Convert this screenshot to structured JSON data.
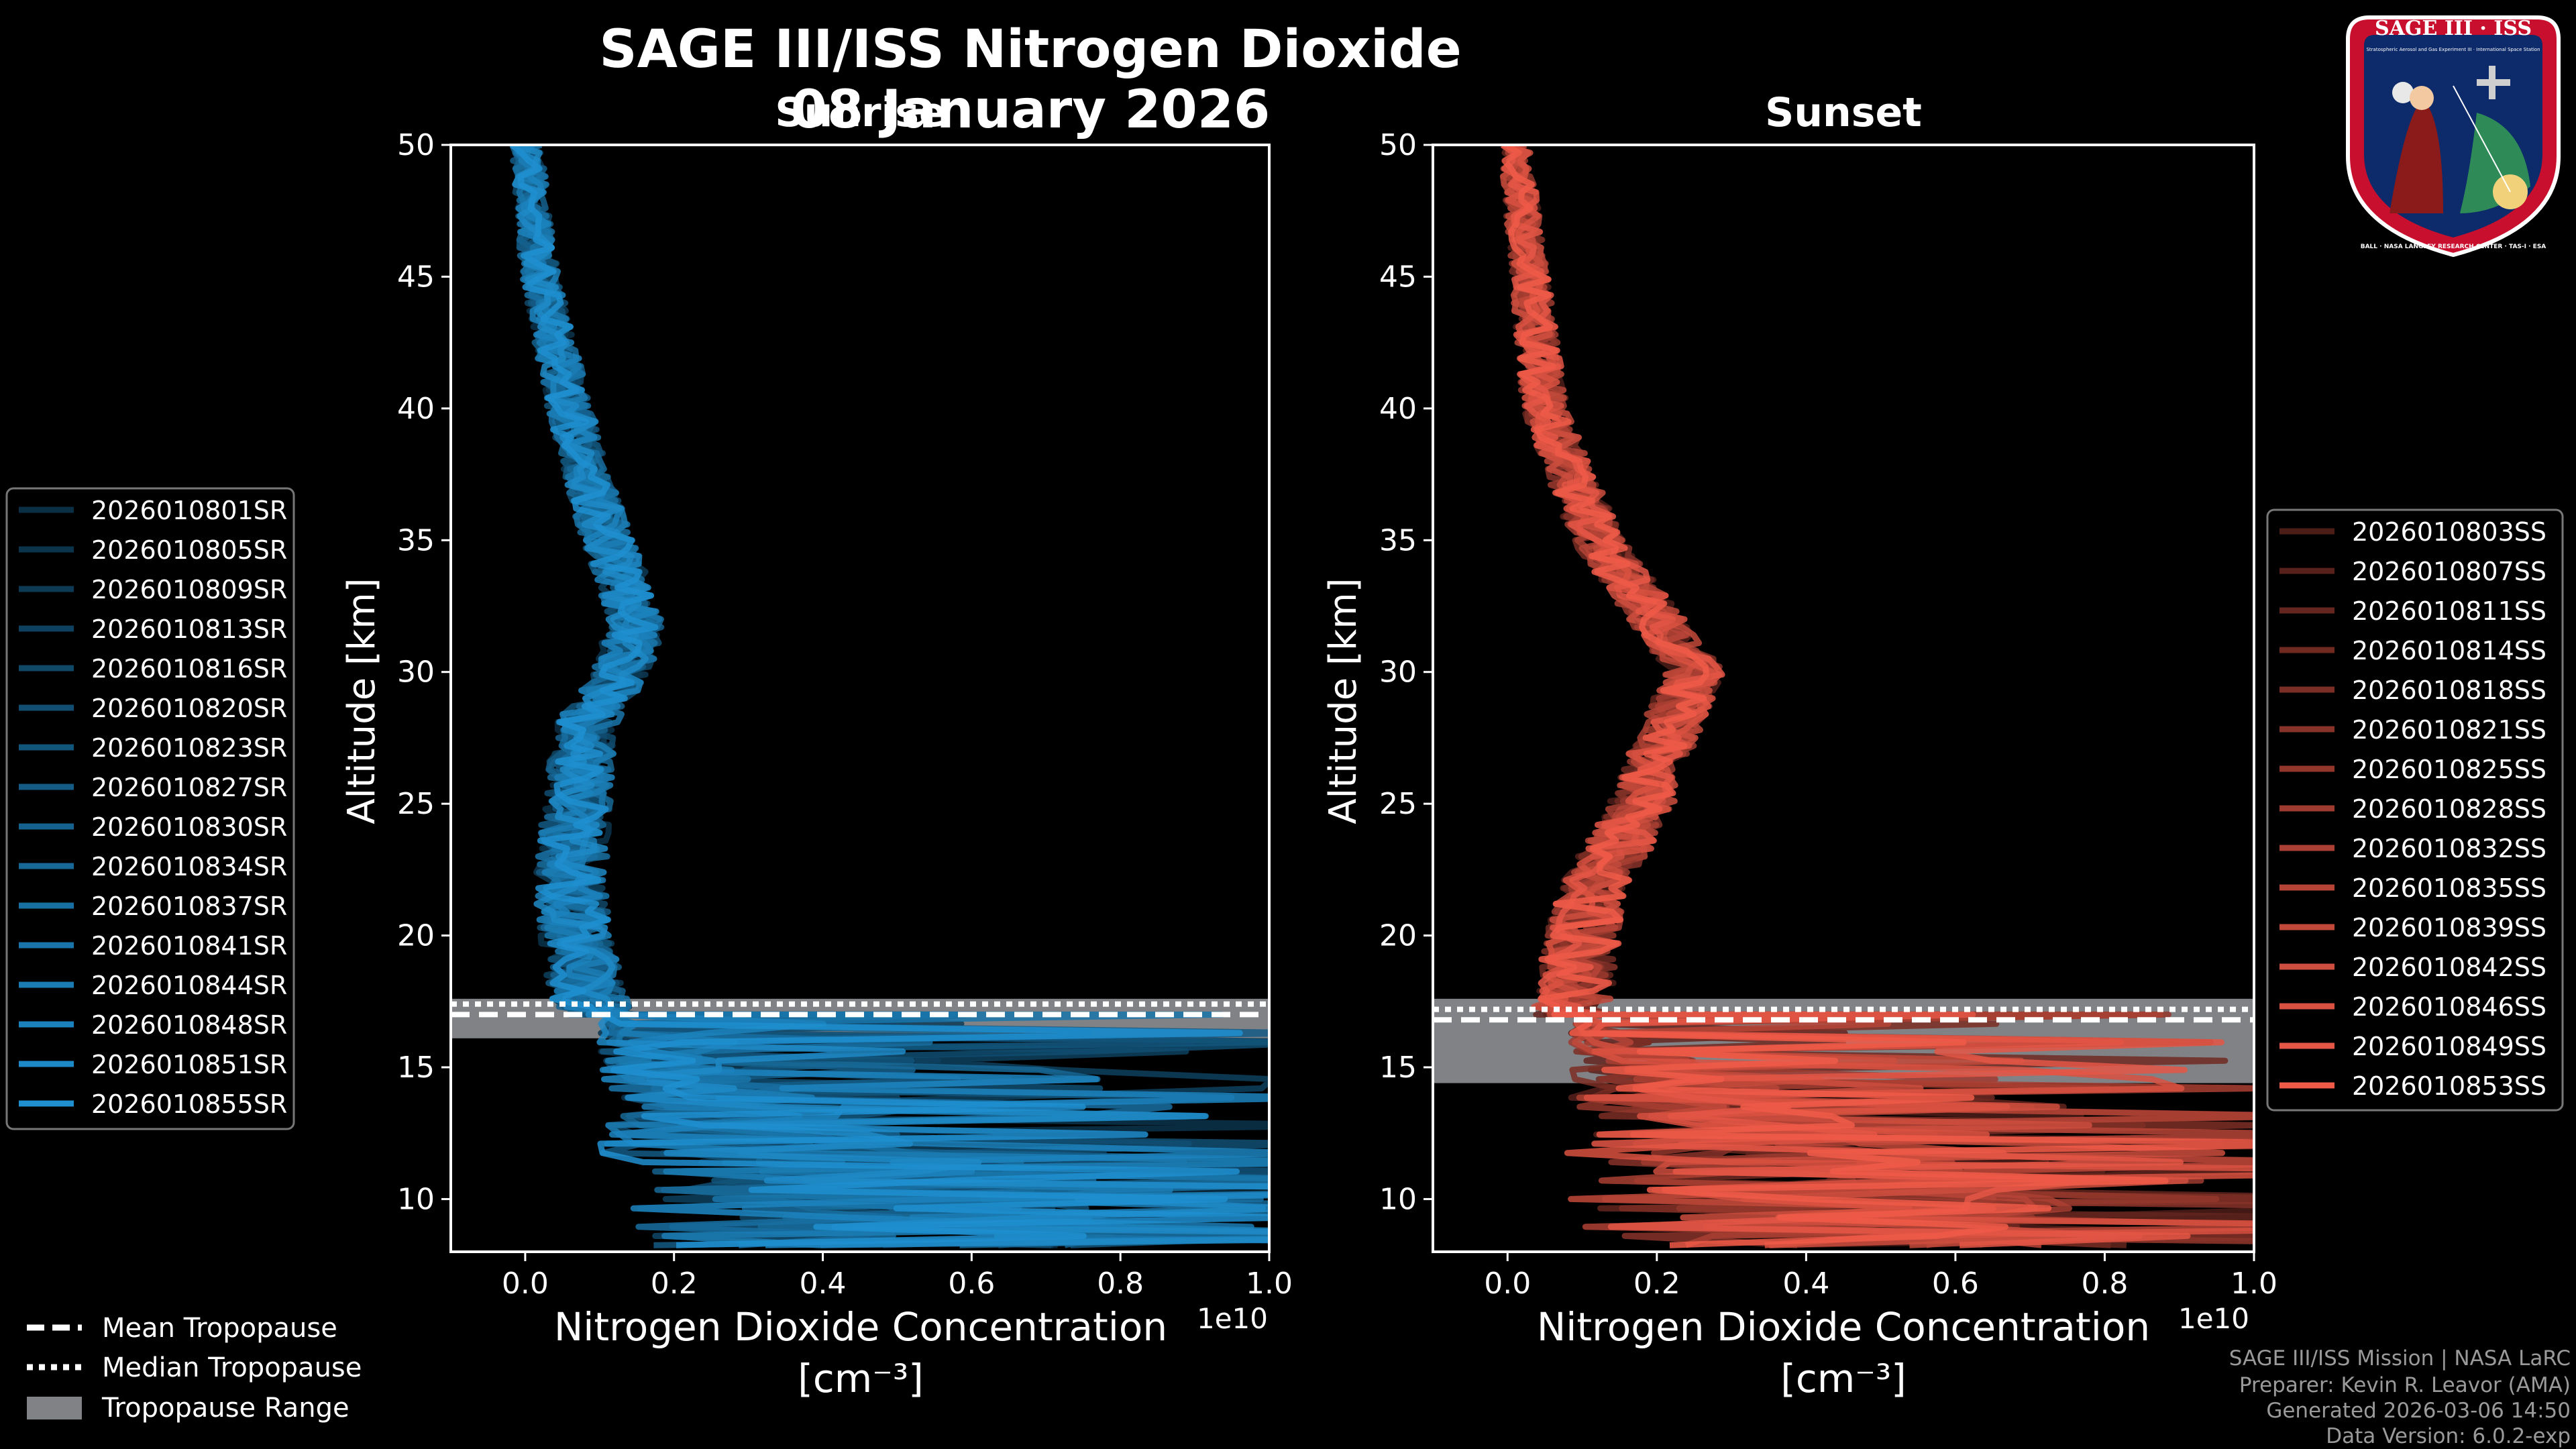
{
  "chart_data": {
    "type": "line",
    "title": "SAGE III/ISS Nitrogen Dioxide",
    "date": "08 January 2026",
    "xlabel": "Nitrogen Dioxide Concentration",
    "xunit": "[cm⁻³]",
    "xscale_label": "1e10",
    "ylabel": "Altitude [km]",
    "xlim": [
      -0.1,
      1.0
    ],
    "ylim": [
      8,
      50
    ],
    "xticks": [
      0.0,
      0.2,
      0.4,
      0.6,
      0.8,
      1.0
    ],
    "yticks": [
      10,
      15,
      20,
      25,
      30,
      35,
      40,
      45,
      50
    ],
    "panels": [
      {
        "name": "Sunrise",
        "color": "#1f8fd0",
        "tropopause": {
          "mean": 17.0,
          "median": 17.4,
          "min": 16.1,
          "max": 17.6
        },
        "series": [
          "2026010801SR",
          "2026010805SR",
          "2026010809SR",
          "2026010813SR",
          "2026010816SR",
          "2026010820SR",
          "2026010823SR",
          "2026010827SR",
          "2026010830SR",
          "2026010834SR",
          "2026010837SR",
          "2026010841SR",
          "2026010844SR",
          "2026010848SR",
          "2026010851SR",
          "2026010855SR"
        ],
        "profile": {
          "alt": [
            50,
            45,
            40,
            35,
            32,
            30,
            28,
            25,
            22,
            20,
            18,
            17
          ],
          "mean": [
            0.002,
            0.02,
            0.06,
            0.11,
            0.15,
            0.13,
            0.08,
            0.07,
            0.06,
            0.07,
            0.08,
            0.1
          ]
        }
      },
      {
        "name": "Sunset",
        "color": "#f05a48",
        "tropopause": {
          "mean": 16.8,
          "median": 17.2,
          "min": 14.4,
          "max": 17.6
        },
        "series": [
          "2026010803SS",
          "2026010807SS",
          "2026010811SS",
          "2026010814SS",
          "2026010818SS",
          "2026010821SS",
          "2026010825SS",
          "2026010828SS",
          "2026010832SS",
          "2026010835SS",
          "2026010839SS",
          "2026010842SS",
          "2026010846SS",
          "2026010849SS",
          "2026010853SS"
        ],
        "profile": {
          "alt": [
            50,
            45,
            40,
            35,
            32,
            30,
            28,
            25,
            22,
            20,
            18,
            15
          ],
          "mean": [
            0.01,
            0.03,
            0.05,
            0.12,
            0.2,
            0.25,
            0.22,
            0.18,
            0.12,
            0.1,
            0.09,
            0.08
          ]
        }
      }
    ],
    "tropopause_legend": [
      "Mean Tropopause",
      "Median Tropopause",
      "Tropopause Range"
    ]
  },
  "badge": {
    "title": "SAGE III · ISS",
    "subtitle": "Stratospheric Aerosol and Gas Experiment III · International Space Station",
    "ring_text": "BALL · NASA LANGLEY RESEARCH CENTER · TAS-I · ESA"
  },
  "credits": [
    "SAGE III/ISS Mission | NASA LaRC",
    "Preparer: Kevin R. Leavor (AMA)",
    "Generated 2026-03-06 14:50",
    "Data Version: 6.0.2-exp"
  ],
  "colors": {
    "background": "#000000",
    "sunrise": "#1f8fd0",
    "sunset": "#f05a48",
    "tropopause_range": "#808285"
  }
}
